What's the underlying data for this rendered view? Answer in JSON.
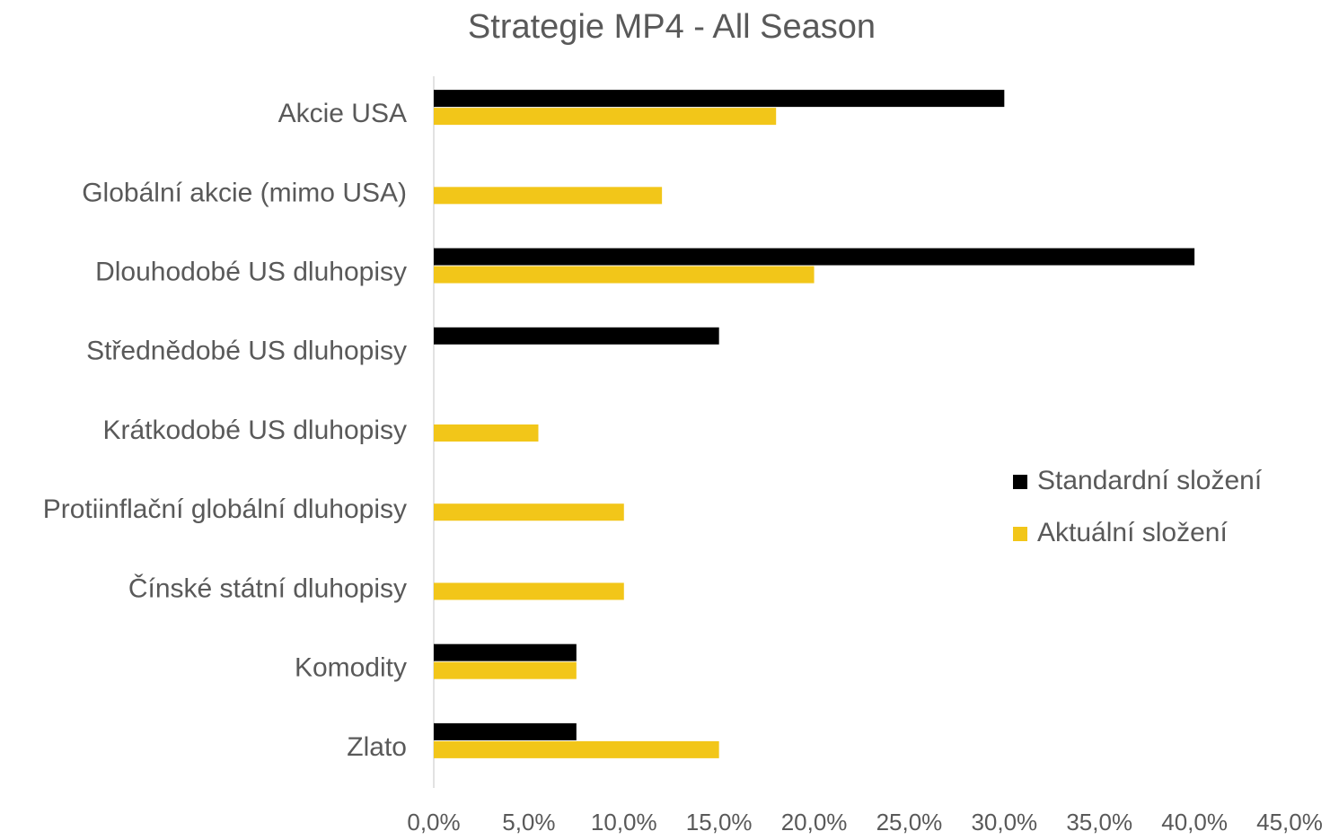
{
  "chart_data": {
    "type": "hbar",
    "title": "Strategie MP4 - All Season",
    "categories": [
      "Akcie USA",
      "Globální akcie (mimo USA)",
      "Dlouhodobé US dluhopisy",
      "Střednědobé US dluhopisy",
      "Krátkodobé US dluhopisy",
      "Protiinflační globální dluhopisy",
      "Čínské státní dluhopisy",
      "Komodity",
      "Zlato"
    ],
    "series": [
      {
        "name": "Standardní složení",
        "color": "#000000",
        "values": [
          30,
          0,
          40,
          15,
          0,
          0,
          0,
          7.5,
          7.5
        ]
      },
      {
        "name": "Aktuální složení",
        "color": "#f2c619",
        "values": [
          18,
          12,
          20,
          0,
          5.5,
          10,
          10,
          7.5,
          15
        ]
      }
    ],
    "xlim": [
      0,
      45
    ],
    "xticks": [
      {
        "value": 0,
        "label": "0,0%"
      },
      {
        "value": 5,
        "label": "5,0%"
      },
      {
        "value": 10,
        "label": "10,0%"
      },
      {
        "value": 15,
        "label": "15,0%"
      },
      {
        "value": 20,
        "label": "20,0%"
      },
      {
        "value": 25,
        "label": "25,0%"
      },
      {
        "value": 30,
        "label": "30,0%"
      },
      {
        "value": 35,
        "label": "35,0%"
      },
      {
        "value": 40,
        "label": "40,0%"
      },
      {
        "value": 45,
        "label": "45,0%"
      }
    ],
    "legend": "right"
  }
}
